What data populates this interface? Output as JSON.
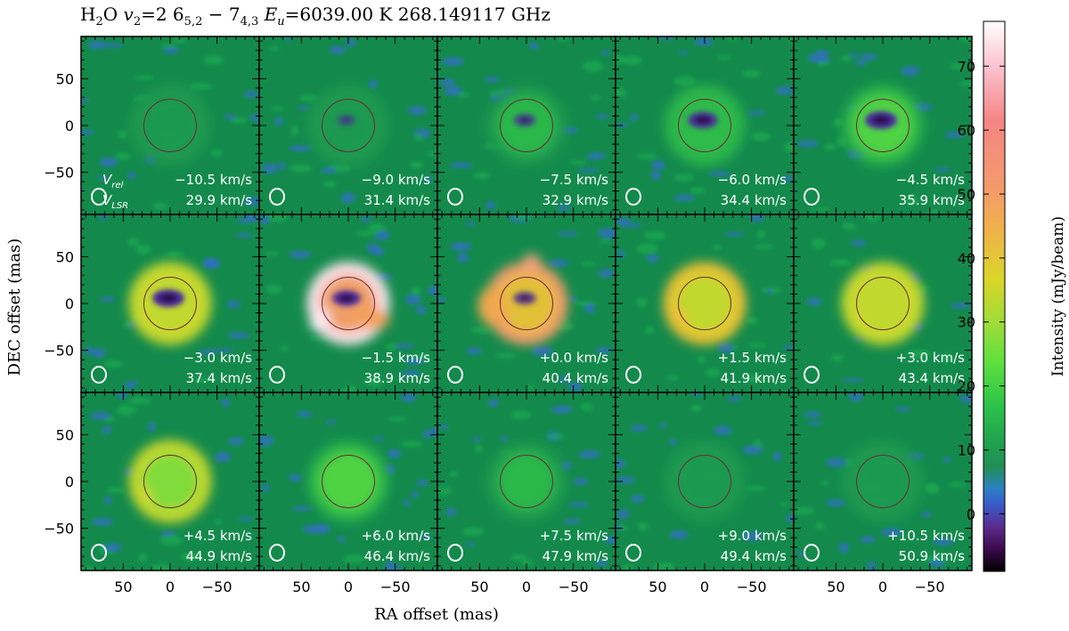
{
  "title": {
    "prefix": "H",
    "prefix_sub": "2",
    "prefix_rest": "O  ",
    "v": "v",
    "v_sub": "2",
    "v_eq": "=2  6",
    "lo_sub": "5,2",
    "dash": "  −  7",
    "up_sub": "4,3",
    "e": "E",
    "e_sub": "u",
    "e_val": "=6039.00 K",
    "freq": "268.149117 GHz"
  },
  "axes": {
    "xlabel": "RA offset (mas)",
    "ylabel": "DEC offset (mas)",
    "x_ticks": [
      "50",
      "0",
      "−50"
    ],
    "y_ticks": [
      "50",
      "0",
      "−50"
    ]
  },
  "colorbar": {
    "label": "Intensity (mJy/beam)",
    "ticks": [
      "70",
      "60",
      "50",
      "40",
      "30",
      "20",
      "10",
      "0"
    ],
    "tick_values": [
      70,
      60,
      50,
      40,
      30,
      20,
      10,
      0
    ],
    "range": [
      -9,
      77
    ]
  },
  "first_panel_labels": {
    "vrel": "V",
    "vrel_sub": "rel",
    "vlsr": "V",
    "vlsr_sub": "LSR"
  },
  "chart_data": {
    "type": "heatmap",
    "layout": "3 rows × 5 columns channel maps",
    "x_range_mas": [
      95,
      -95
    ],
    "y_range_mas": [
      -95,
      95
    ],
    "stellar_disk_radius_mas": 28,
    "panels": [
      {
        "vrel": "−10.5 km/s",
        "vlsr": "29.9 km/s",
        "peak": 3
      },
      {
        "vrel": "−9.0 km/s",
        "vlsr": "31.4 km/s",
        "peak": 6
      },
      {
        "vrel": "−7.5 km/s",
        "vlsr": "32.9 km/s",
        "peak": 9
      },
      {
        "vrel": "−6.0 km/s",
        "vlsr": "34.4 km/s",
        "peak": 14
      },
      {
        "vrel": "−4.5 km/s",
        "vlsr": "35.9 km/s",
        "peak": 20
      },
      {
        "vrel": "−3.0 km/s",
        "vlsr": "37.4 km/s",
        "peak": 38
      },
      {
        "vrel": "−1.5 km/s",
        "vlsr": "38.9 km/s",
        "peak": 77
      },
      {
        "vrel": "+0.0 km/s",
        "vlsr": "40.4 km/s",
        "peak": 50
      },
      {
        "vrel": "+1.5 km/s",
        "vlsr": "41.9 km/s",
        "peak": 42
      },
      {
        "vrel": "+3.0 km/s",
        "vlsr": "43.4 km/s",
        "peak": 38
      },
      {
        "vrel": "+4.5 km/s",
        "vlsr": "44.9 km/s",
        "peak": 30
      },
      {
        "vrel": "+6.0 km/s",
        "vlsr": "46.4 km/s",
        "peak": 20
      },
      {
        "vrel": "+7.5 km/s",
        "vlsr": "47.9 km/s",
        "peak": 10
      },
      {
        "vrel": "+9.0 km/s",
        "vlsr": "49.4 km/s",
        "peak": 6
      },
      {
        "vrel": "+10.5 km/s",
        "vlsr": "50.9 km/s",
        "peak": 4
      }
    ]
  }
}
